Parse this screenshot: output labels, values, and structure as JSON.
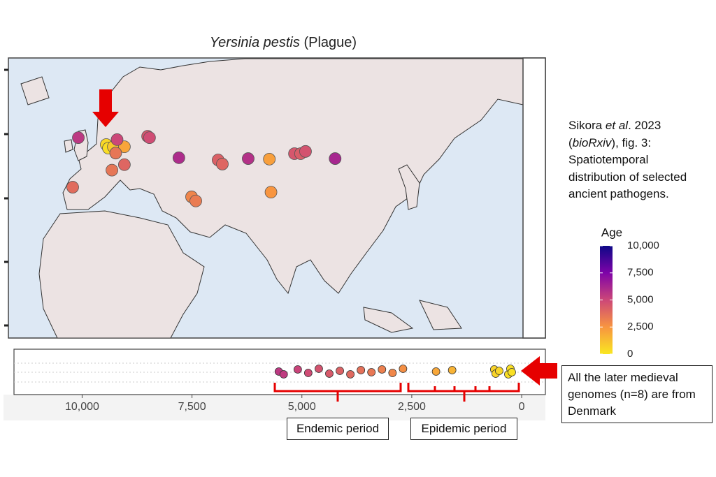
{
  "chart_data": {
    "type": "map",
    "title_italic": "Yersinia pestis",
    "title_rest": "(Plague)",
    "points": {
      "lon": [
        -1.3,
        10.6,
        11.5,
        13.6,
        18.3,
        15.2,
        14.6,
        -3.7,
        13.0,
        18.3,
        28.2,
        29.0,
        41.5,
        46.9,
        48.7,
        58.2,
        60.0,
        71.0,
        80.0,
        80.7,
        90.7,
        93.3,
        95.4,
        108.0
      ],
      "lat": [
        58.0,
        55.5,
        54.2,
        54.7,
        54.7,
        57.3,
        52.4,
        40.0,
        46.2,
        48.2,
        58.5,
        58.0,
        50.7,
        36.5,
        35.0,
        49.9,
        48.4,
        50.4,
        50.2,
        38.2,
        52.2,
        52.2,
        53.0,
        50.4
      ],
      "age": [
        5500,
        500,
        300,
        1000,
        2000,
        5000,
        3500,
        3800,
        3500,
        4000,
        4500,
        4800,
        6000,
        3000,
        3300,
        4200,
        4000,
        5800,
        2200,
        2500,
        4500,
        4300,
        4600,
        6200
      ]
    },
    "timeline": {
      "type": "strip",
      "ages": [
        5525,
        5414,
        5094,
        4855,
        4615,
        4376,
        4136,
        3897,
        3657,
        3418,
        3178,
        2938,
        2699,
        1948,
        1581,
        623,
        591,
        511,
        303,
        256,
        224
      ],
      "xlim": [
        11550,
        -540
      ],
      "xticks": [
        {
          "value": 10000,
          "label": "10,000"
        },
        {
          "value": 7500,
          "label": "7,500"
        },
        {
          "value": 5000,
          "label": "5,000"
        },
        {
          "value": 2500,
          "label": "2,500"
        },
        0
      ]
    },
    "legend": {
      "title": "Age",
      "lim": [
        0,
        10000
      ],
      "ticks": [
        {
          "value": 10000,
          "label": "10,000"
        },
        {
          "value": 7500,
          "label": "7,500"
        },
        {
          "value": 5000,
          "label": "5,000"
        },
        {
          "value": 2500,
          "label": "2,500"
        },
        0
      ],
      "colors": [
        "#f9e721",
        "#f89540",
        "#cc4778",
        "#7e03a8",
        "#0d0887"
      ]
    }
  },
  "caption": [
    "Sikora ",
    "et al",
    ". 2023 (",
    "bioRxiv",
    "), fig. 3: Spatiotemporal distribution of selected ancient pathogens."
  ],
  "annotations": {
    "endemic": "Endemic period",
    "epidemic": "Epidemic period",
    "denmark": "All the later medieval genomes (n=8) are from Denmark"
  }
}
